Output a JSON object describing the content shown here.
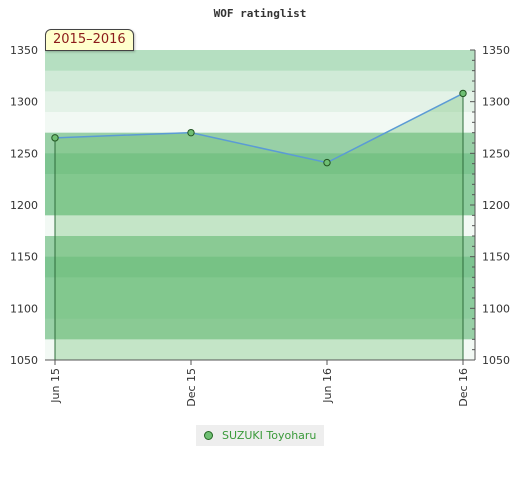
{
  "chart_data": {
    "type": "area",
    "title": "WOF ratinglist",
    "period_label": "2015–2016",
    "x_categories": [
      "Jun 15",
      "Dec 15",
      "Jun 16",
      "Dec 16"
    ],
    "series": [
      {
        "name": "SUZUKI Toyoharu",
        "values": [
          1265,
          1270,
          1241,
          1308
        ]
      }
    ],
    "ylim": [
      1050,
      1350
    ],
    "y_ticks": [
      1050,
      1100,
      1150,
      1200,
      1250,
      1300,
      1350
    ],
    "colors": {
      "line": "#5b9bd5",
      "area": "#6fbf73",
      "point_fill": "#6fbf73",
      "point_stroke": "#225522",
      "legend_text": "#3a9a3a"
    },
    "legend_placement": "bottom-center",
    "grid": true
  }
}
